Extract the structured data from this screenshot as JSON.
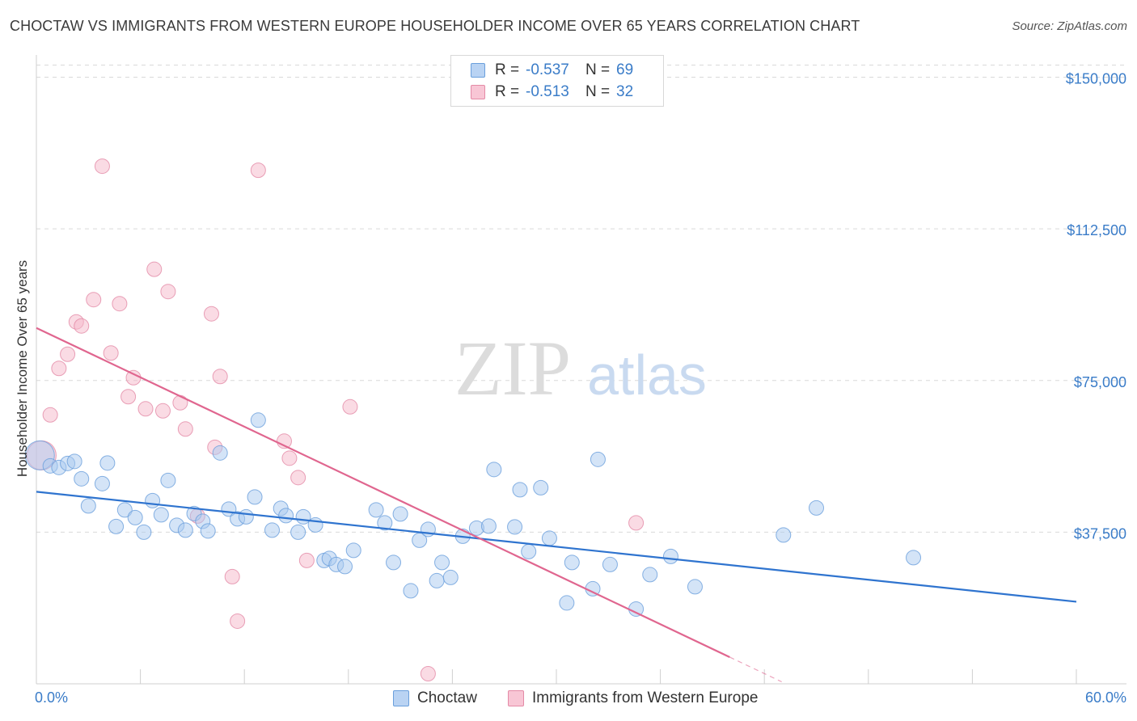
{
  "header": {
    "title": "CHOCTAW VS IMMIGRANTS FROM WESTERN EUROPE HOUSEHOLDER INCOME OVER 65 YEARS CORRELATION CHART",
    "source": "Source: ZipAtlas.com"
  },
  "watermark": {
    "zip": "ZIP",
    "atlas": "atlas"
  },
  "legend": {
    "rows": [
      {
        "r_label": "R =",
        "r_value": "-0.537",
        "n_label": "N =",
        "n_value": "69"
      },
      {
        "r_label": "R =",
        "r_value": "-0.513",
        "n_label": "N =",
        "n_value": "32"
      }
    ]
  },
  "bottom_legend": {
    "series1": "Choctaw",
    "series2": "Immigrants from Western Europe"
  },
  "colors": {
    "blue_fill": "#a9c9f0",
    "blue_stroke": "#6a9fdc",
    "blue_line": "#2f74cf",
    "pink_fill": "#f5b7ca",
    "pink_stroke": "#e48aa6",
    "pink_line": "#e0668f",
    "tick_text": "#3a7cc8",
    "grid": "#d9d9d9"
  },
  "chart_data": {
    "type": "scatter",
    "title": "CHOCTAW VS IMMIGRANTS FROM WESTERN EUROPE HOUSEHOLDER INCOME OVER 65 YEARS CORRELATION CHART",
    "xlabel": "",
    "ylabel": "Householder Income Over 65 years",
    "xlim": [
      0,
      60
    ],
    "ylim": [
      0,
      157500
    ],
    "x_tick_labels": [
      "0.0%",
      "60.0%"
    ],
    "y_ticks": [
      37500,
      75000,
      112500,
      150000
    ],
    "y_tick_labels": [
      "$37,500",
      "$75,000",
      "$112,500",
      "$150,000"
    ],
    "series": [
      {
        "name": "Choctaw",
        "r": -0.537,
        "n": 69,
        "trend": {
          "x": [
            0,
            60
          ],
          "y": [
            47500,
            20300
          ]
        },
        "points": [
          [
            0.2,
            56500,
            "large"
          ],
          [
            0.8,
            53900
          ],
          [
            1.3,
            53500
          ],
          [
            1.8,
            54500
          ],
          [
            2.2,
            55000
          ],
          [
            2.6,
            50700
          ],
          [
            3.0,
            44000
          ],
          [
            3.8,
            49500
          ],
          [
            4.1,
            54600
          ],
          [
            4.6,
            38900
          ],
          [
            5.1,
            43000
          ],
          [
            5.7,
            41100
          ],
          [
            6.2,
            37500
          ],
          [
            6.7,
            45300
          ],
          [
            7.2,
            41800
          ],
          [
            7.6,
            50300
          ],
          [
            8.1,
            39200
          ],
          [
            8.6,
            38000
          ],
          [
            9.1,
            42100
          ],
          [
            9.6,
            40200
          ],
          [
            9.9,
            37800
          ],
          [
            10.6,
            57100
          ],
          [
            11.1,
            43200
          ],
          [
            11.6,
            40800
          ],
          [
            12.1,
            41300
          ],
          [
            12.6,
            46200
          ],
          [
            12.8,
            65200
          ],
          [
            13.6,
            38000
          ],
          [
            14.1,
            43400
          ],
          [
            14.4,
            41600
          ],
          [
            15.1,
            37500
          ],
          [
            15.4,
            41300
          ],
          [
            16.1,
            39300
          ],
          [
            16.6,
            30500
          ],
          [
            16.9,
            31000
          ],
          [
            17.3,
            29500
          ],
          [
            17.8,
            29000
          ],
          [
            18.3,
            33000
          ],
          [
            19.6,
            43000
          ],
          [
            20.1,
            39800
          ],
          [
            20.6,
            30000
          ],
          [
            21.0,
            42000
          ],
          [
            21.6,
            23000
          ],
          [
            22.1,
            35500
          ],
          [
            22.6,
            38200
          ],
          [
            23.1,
            25500
          ],
          [
            23.4,
            30000
          ],
          [
            23.9,
            26300
          ],
          [
            24.6,
            36500
          ],
          [
            25.4,
            38500
          ],
          [
            26.1,
            39000
          ],
          [
            26.4,
            53000
          ],
          [
            27.6,
            38800
          ],
          [
            27.9,
            48000
          ],
          [
            28.4,
            32700
          ],
          [
            29.1,
            48500
          ],
          [
            29.6,
            36000
          ],
          [
            30.6,
            20000
          ],
          [
            30.9,
            30000
          ],
          [
            32.1,
            23500
          ],
          [
            32.4,
            55500
          ],
          [
            33.1,
            29500
          ],
          [
            34.6,
            18500
          ],
          [
            35.4,
            27000
          ],
          [
            36.6,
            31500
          ],
          [
            38.0,
            24000
          ],
          [
            43.1,
            36800
          ],
          [
            45.0,
            43500
          ],
          [
            50.6,
            31200
          ]
        ]
      },
      {
        "name": "Immigrants from Western Europe",
        "r": -0.513,
        "n": 32,
        "trend": {
          "x": [
            0,
            40
          ],
          "y": [
            88000,
            6600
          ]
        },
        "trend_dashed": {
          "x": [
            40,
            43
          ],
          "y": [
            6600,
            500
          ]
        },
        "points": [
          [
            0.3,
            56500,
            "large"
          ],
          [
            0.8,
            66500
          ],
          [
            1.3,
            78000
          ],
          [
            1.8,
            81500
          ],
          [
            2.3,
            89500
          ],
          [
            2.6,
            88500
          ],
          [
            3.3,
            95000
          ],
          [
            3.8,
            128000
          ],
          [
            4.3,
            81800
          ],
          [
            4.8,
            94000
          ],
          [
            5.3,
            71000
          ],
          [
            5.6,
            75700
          ],
          [
            6.3,
            68000
          ],
          [
            6.8,
            102500
          ],
          [
            7.3,
            67500
          ],
          [
            7.6,
            97000
          ],
          [
            8.3,
            69500
          ],
          [
            8.6,
            63000
          ],
          [
            9.3,
            41500
          ],
          [
            10.1,
            91500
          ],
          [
            10.3,
            58500
          ],
          [
            10.6,
            76000
          ],
          [
            11.3,
            26500
          ],
          [
            11.6,
            15500
          ],
          [
            12.8,
            127000
          ],
          [
            14.3,
            60000
          ],
          [
            14.6,
            55800
          ],
          [
            15.1,
            51000
          ],
          [
            15.6,
            30500
          ],
          [
            18.1,
            68500
          ],
          [
            22.6,
            2500
          ],
          [
            34.6,
            39800
          ]
        ]
      }
    ]
  }
}
